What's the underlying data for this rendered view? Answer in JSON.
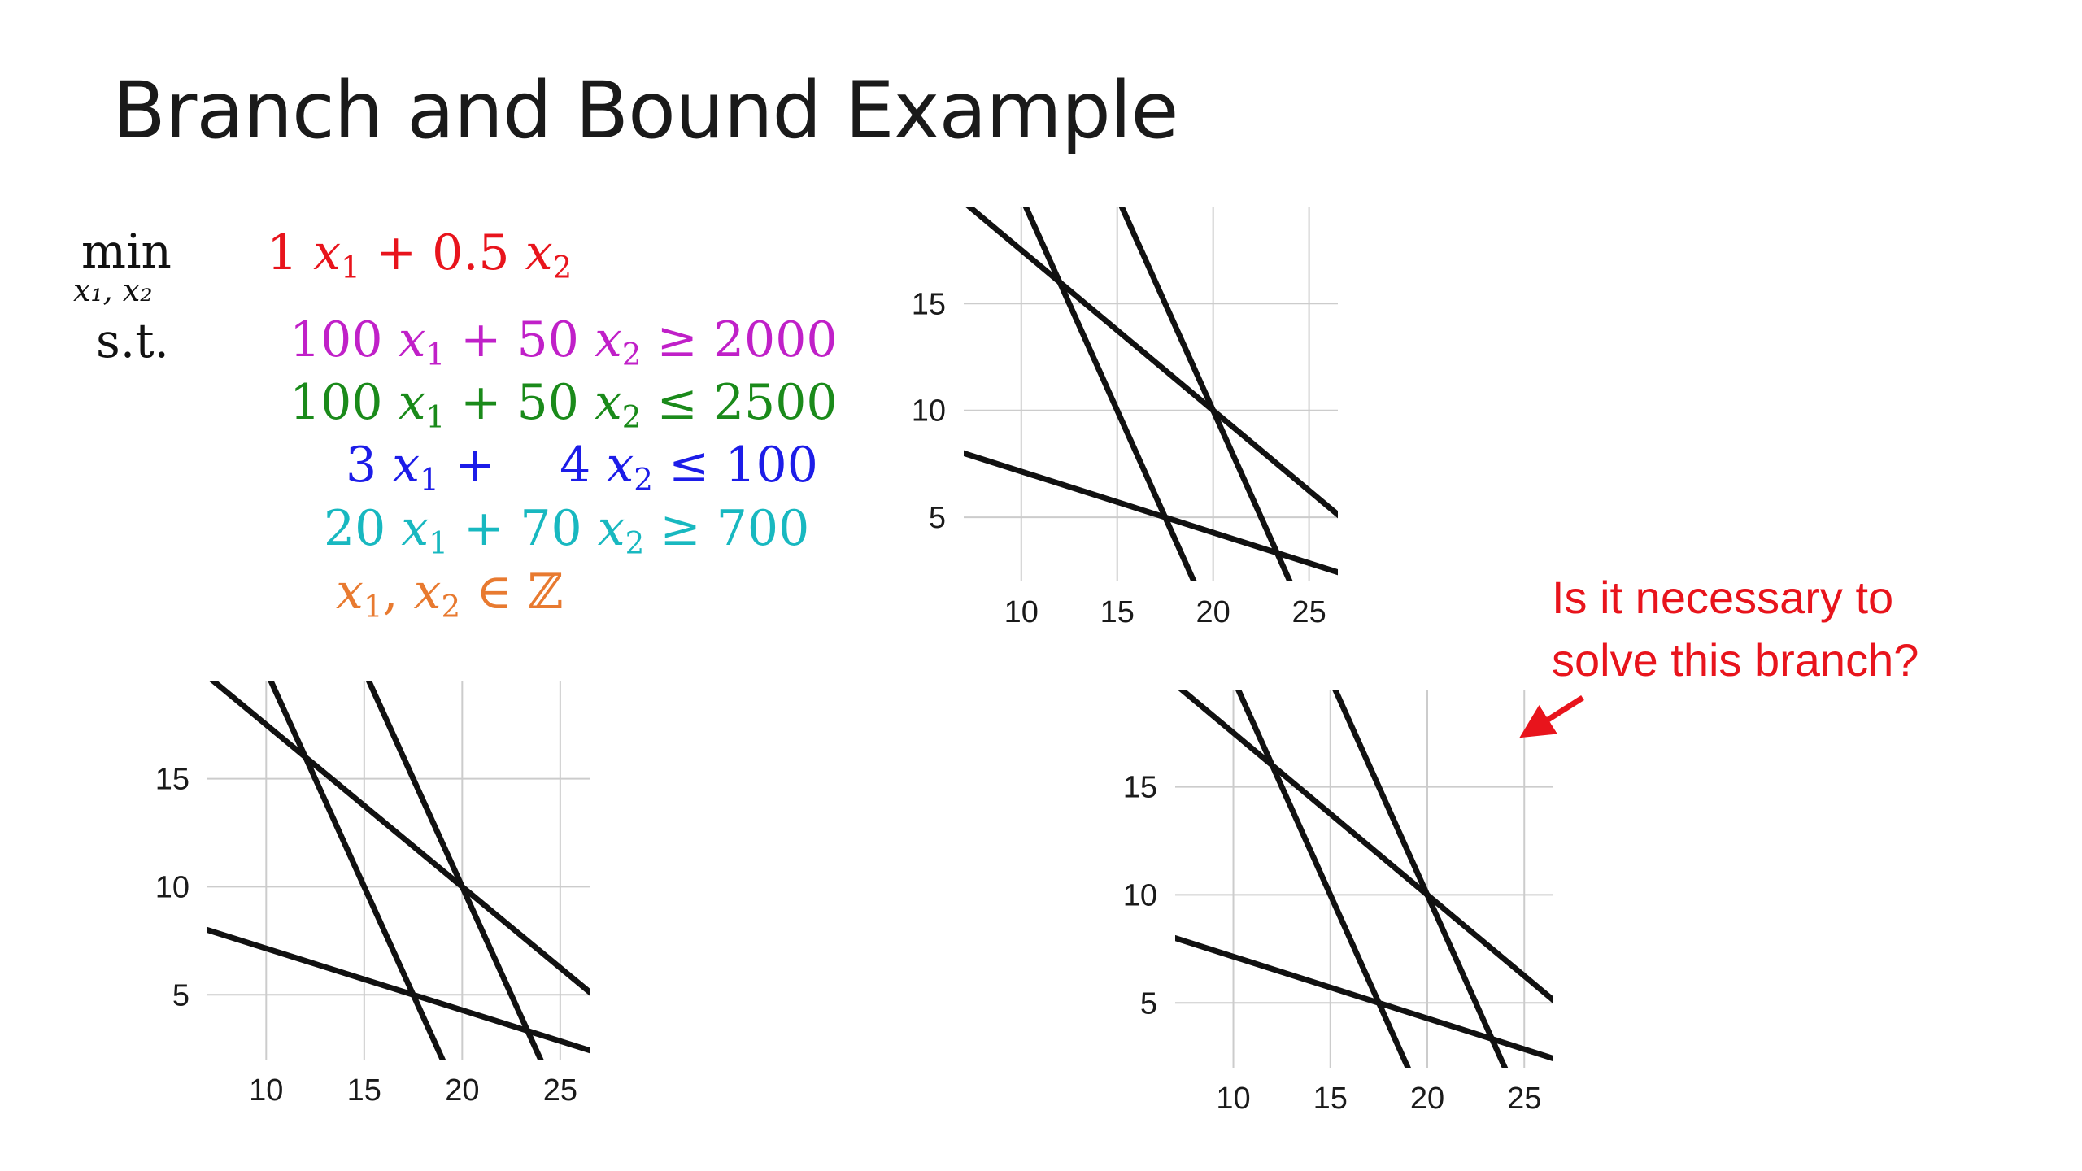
{
  "slide": {
    "title": "Branch and Bound Example",
    "note_lines": [
      "Is it necessary to",
      "solve this branch?"
    ]
  },
  "formulation": {
    "min_word": "min",
    "min_vars": "x₁, x₂",
    "st_word": "s.t.",
    "objective": {
      "color": "#e8141c",
      "parts": [
        {
          "t": "1 "
        },
        {
          "t": "x",
          "i": true
        },
        {
          "t": "1",
          "sub": true
        },
        {
          "t": " + 0.5 "
        },
        {
          "t": "x",
          "i": true
        },
        {
          "t": "2",
          "sub": true
        }
      ]
    },
    "constraints": [
      {
        "color": "#c020c8",
        "parts": [
          {
            "t": "100 "
          },
          {
            "t": "x",
            "i": true
          },
          {
            "t": "1",
            "sub": true
          },
          {
            "t": " + 50 "
          },
          {
            "t": "x",
            "i": true
          },
          {
            "t": "2",
            "sub": true
          },
          {
            "t": " ≥ 2000"
          }
        ]
      },
      {
        "color": "#1a8a1a",
        "parts": [
          {
            "t": "100 "
          },
          {
            "t": "x",
            "i": true
          },
          {
            "t": "1",
            "sub": true
          },
          {
            "t": " + 50 "
          },
          {
            "t": "x",
            "i": true
          },
          {
            "t": "2",
            "sub": true
          },
          {
            "t": " ≤ 2500"
          }
        ]
      },
      {
        "color": "#1c1ce8",
        "parts": [
          {
            "t": "3 "
          },
          {
            "t": "x",
            "i": true
          },
          {
            "t": "1",
            "sub": true
          },
          {
            "t": " +  4 "
          },
          {
            "t": "x",
            "i": true
          },
          {
            "t": "2",
            "sub": true
          },
          {
            "t": " ≤ 100"
          }
        ]
      },
      {
        "color": "#18b8c0",
        "parts": [
          {
            "t": "20 "
          },
          {
            "t": "x",
            "i": true
          },
          {
            "t": "1",
            "sub": true
          },
          {
            "t": " + 70 "
          },
          {
            "t": "x",
            "i": true
          },
          {
            "t": "2",
            "sub": true
          },
          {
            "t": " ≥ 700"
          }
        ]
      },
      {
        "color": "#e87a30",
        "parts": [
          {
            "t": "x",
            "i": true
          },
          {
            "t": "1",
            "sub": true
          },
          {
            "t": ", "
          },
          {
            "t": "x",
            "i": true
          },
          {
            "t": "2",
            "sub": true
          },
          {
            "t": " ∈ ℤ"
          }
        ]
      }
    ]
  },
  "plot_template": {
    "x_ticks": [
      10,
      15,
      20,
      25
    ],
    "y_ticks": [
      5,
      10,
      15
    ],
    "xlim": [
      7,
      26.5
    ],
    "ylim": [
      2,
      19.5
    ],
    "grid": true,
    "grid_color": "#cccccc",
    "line_color": "#111111",
    "lines": [
      {
        "name": "100x1+50x2=2000",
        "p1": [
          9.9,
          20.2
        ],
        "p2": [
          19.1,
          1.8
        ]
      },
      {
        "name": "100x1+50x2=2500",
        "p1": [
          14.9,
          20.2
        ],
        "p2": [
          24.1,
          1.8
        ]
      },
      {
        "name": "3x1+4x2=100",
        "p1": [
          6.9,
          19.825
        ],
        "p2": [
          26.6,
          5.05
        ]
      },
      {
        "name": "20x1+70x2=700",
        "p1": [
          6.9,
          8.029
        ],
        "p2": [
          26.6,
          2.4
        ]
      }
    ]
  },
  "plots": [
    {
      "name": "plot-top"
    },
    {
      "name": "plot-bottom-left"
    },
    {
      "name": "plot-bottom-right"
    }
  ],
  "colors": {
    "title": "#1a1a1a",
    "note": "#e8141c",
    "arrow": "#e8141c"
  }
}
